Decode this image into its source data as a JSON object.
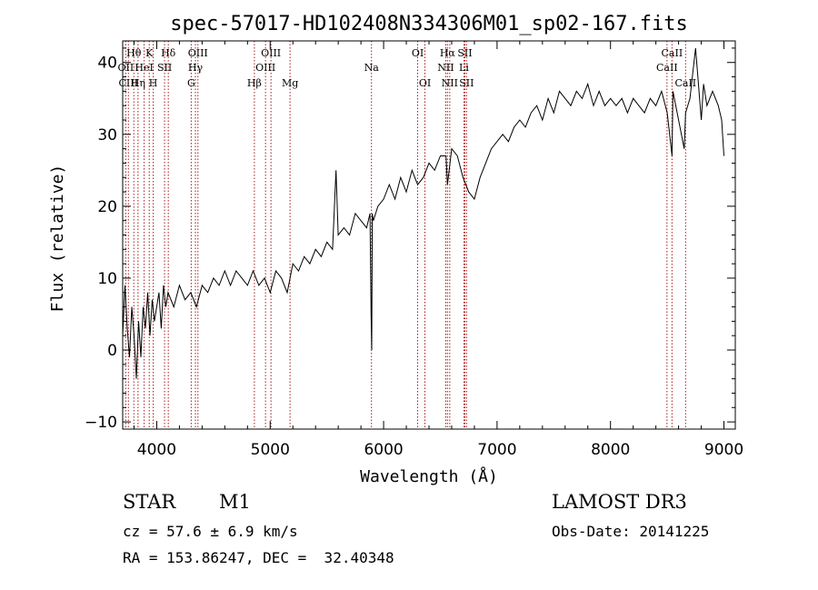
{
  "chart_data": {
    "type": "line",
    "title": "spec-57017-HD102408N334306M01_sp02-167.fits",
    "xlabel": "Wavelength (Å)",
    "ylabel": "Flux (relative)",
    "xlim": [
      3700,
      9100
    ],
    "ylim": [
      -11,
      43
    ],
    "xticks": [
      4000,
      5000,
      6000,
      7000,
      8000,
      9000
    ],
    "yticks": [
      -10,
      0,
      10,
      20,
      30,
      40
    ],
    "grid": false,
    "line_color": "#000000",
    "marker_color": "#aa1a1a",
    "series": [
      {
        "x": [
          3700,
          3720,
          3740,
          3760,
          3780,
          3800,
          3820,
          3840,
          3860,
          3880,
          3900,
          3920,
          3940,
          3960,
          3980,
          4000,
          4020,
          4040,
          4060,
          4080,
          4100,
          4150,
          4200,
          4250,
          4300,
          4350,
          4400,
          4450,
          4500,
          4550,
          4600,
          4650,
          4700,
          4750,
          4800,
          4850,
          4900,
          4950,
          5000,
          5050,
          5100,
          5150,
          5200,
          5250,
          5300,
          5350,
          5400,
          5450,
          5500,
          5550,
          5580,
          5600,
          5650,
          5700,
          5750,
          5800,
          5850,
          5880,
          5890,
          5895,
          5900,
          5910,
          5950,
          6000,
          6050,
          6100,
          6150,
          6200,
          6250,
          6300,
          6350,
          6400,
          6450,
          6500,
          6550,
          6563,
          6600,
          6650,
          6700,
          6750,
          6800,
          6850,
          6900,
          6950,
          7000,
          7050,
          7100,
          7150,
          7200,
          7250,
          7300,
          7350,
          7400,
          7450,
          7500,
          7550,
          7600,
          7650,
          7700,
          7750,
          7800,
          7850,
          7900,
          7950,
          8000,
          8050,
          8100,
          8150,
          8200,
          8250,
          8300,
          8350,
          8400,
          8450,
          8500,
          8542,
          8550,
          8600,
          8650,
          8662,
          8700,
          8750,
          8800,
          8820,
          8850,
          8900,
          8950,
          8980,
          9000
        ],
        "y": [
          2,
          9,
          3,
          -1,
          6,
          2,
          -4,
          4,
          -1,
          6,
          3,
          8,
          2,
          7,
          4,
          6,
          8,
          3,
          9,
          6,
          8,
          6,
          9,
          7,
          8,
          6,
          9,
          8,
          10,
          9,
          11,
          9,
          11,
          10,
          9,
          11,
          9,
          10,
          8,
          11,
          10,
          8,
          12,
          11,
          13,
          12,
          14,
          13,
          15,
          14,
          25,
          16,
          17,
          16,
          19,
          18,
          17,
          19,
          5,
          0,
          19,
          18,
          20,
          21,
          23,
          21,
          24,
          22,
          25,
          23,
          24,
          26,
          25,
          27,
          27,
          23,
          28,
          27,
          24,
          22,
          21,
          24,
          26,
          28,
          29,
          30,
          29,
          31,
          32,
          31,
          33,
          34,
          32,
          35,
          33,
          36,
          35,
          34,
          36,
          35,
          37,
          34,
          36,
          34,
          35,
          34,
          35,
          33,
          35,
          34,
          33,
          35,
          34,
          36,
          33,
          27,
          36,
          32,
          28,
          33,
          35,
          42,
          32,
          37,
          34,
          36,
          34,
          32,
          27
        ]
      }
    ],
    "line_labels": [
      {
        "label": "Hθ",
        "x": 3798,
        "row": 1
      },
      {
        "label": "OII",
        "x": 3727,
        "row": 2
      },
      {
        "label": "CIII",
        "x": 3750,
        "row": 3
      },
      {
        "label": "K",
        "x": 3934,
        "row": 1
      },
      {
        "label": "HeI",
        "x": 3889,
        "row": 2
      },
      {
        "label": "Hη",
        "x": 3835,
        "row": 3
      },
      {
        "label": "Hδ",
        "x": 4102,
        "row": 1
      },
      {
        "label": "SII",
        "x": 4069,
        "row": 2
      },
      {
        "label": "H",
        "x": 3969,
        "row": 3
      },
      {
        "label": "OIII",
        "x": 4363,
        "row": 1
      },
      {
        "label": "Hγ",
        "x": 4341,
        "row": 2
      },
      {
        "label": "G",
        "x": 4304,
        "row": 3
      },
      {
        "label": "OIII",
        "x": 5007,
        "row": 1
      },
      {
        "label": "OIII",
        "x": 4959,
        "row": 2
      },
      {
        "label": "Hβ",
        "x": 4861,
        "row": 3
      },
      {
        "label": "Mg",
        "x": 5175,
        "row": 3
      },
      {
        "label": "Na",
        "x": 5893,
        "row": 2
      },
      {
        "label": "OI",
        "x": 6300,
        "row": 1
      },
      {
        "label": "OI",
        "x": 6364,
        "row": 3
      },
      {
        "label": "Hα",
        "x": 6563,
        "row": 1
      },
      {
        "label": "SII",
        "x": 6716,
        "row": 1
      },
      {
        "label": "NII",
        "x": 6548,
        "row": 2
      },
      {
        "label": "Li",
        "x": 6708,
        "row": 2
      },
      {
        "label": "NII",
        "x": 6583,
        "row": 3
      },
      {
        "label": "SII",
        "x": 6731,
        "row": 3
      },
      {
        "label": "CaII",
        "x": 8542,
        "row": 1
      },
      {
        "label": "CaII",
        "x": 8498,
        "row": 2
      },
      {
        "label": "CaII",
        "x": 8662,
        "row": 3
      }
    ],
    "marker_lines": [
      3727,
      3750,
      3798,
      3835,
      3889,
      3934,
      3969,
      4069,
      4102,
      4304,
      4341,
      4363,
      4861,
      4959,
      5007,
      5175,
      5893,
      6300,
      6364,
      6548,
      6563,
      6583,
      6708,
      6716,
      6731,
      8498,
      8542,
      8662
    ]
  },
  "info": {
    "object_class": "STAR",
    "subclass": "M1",
    "survey": "LAMOST DR3",
    "redshift_text": "cz = 57.6 ± 6.9 km/s",
    "obs_date_text": "Obs-Date: 20141225",
    "coords_text": "RA = 153.86247, DEC =  32.40348"
  }
}
